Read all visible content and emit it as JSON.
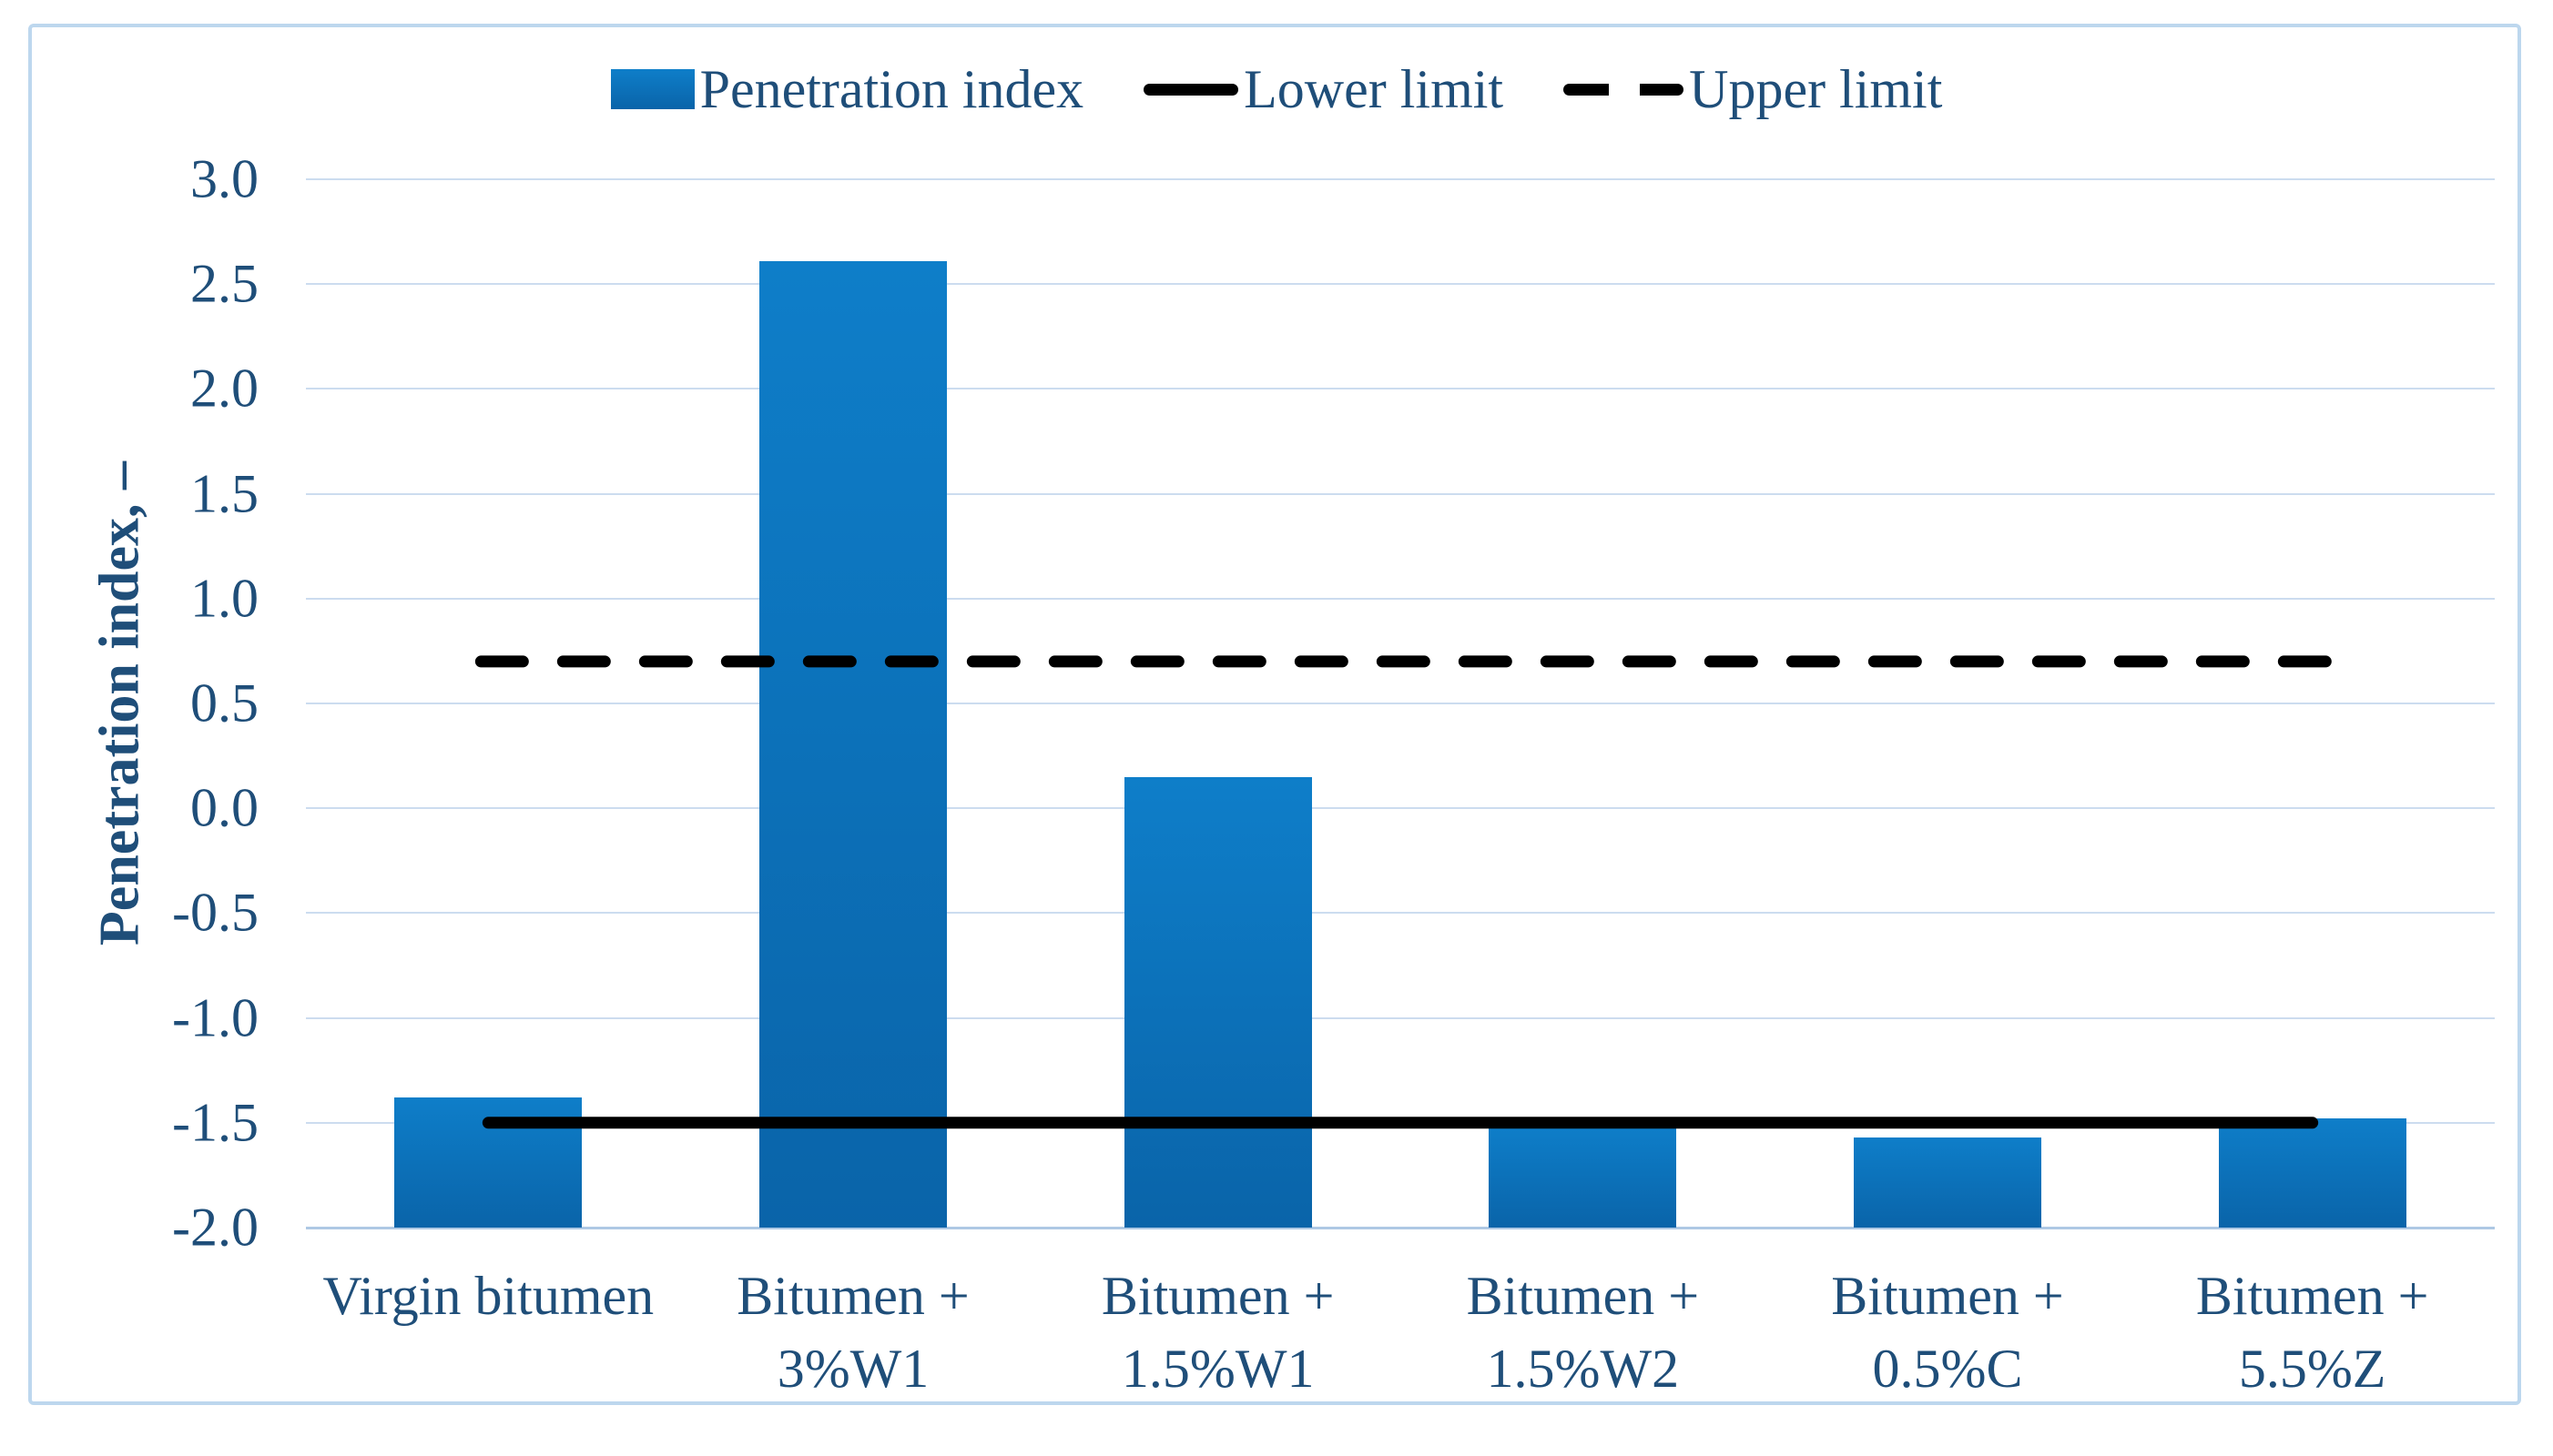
{
  "figure": {
    "description": "Bar chart of penetration index for virgin and modified bitumen samples with lower and upper limit lines"
  },
  "legend": {
    "items": [
      {
        "label": "Penetration index",
        "marker": "bar-swatch"
      },
      {
        "label": "Lower limit",
        "marker": "solid-line"
      },
      {
        "label": "Upper limit",
        "marker": "dashed-line"
      }
    ]
  },
  "chart_data": {
    "type": "bar",
    "title": "",
    "ylabel": "Penetration index, –",
    "xlabel": "",
    "categories": [
      "Virgin bitumen",
      "Bitumen +\n3%W1",
      "Bitumen +\n1.5%W1",
      "Bitumen +\n1.5%W2",
      "Bitumen +\n0.5%C",
      "Bitumen +\n5.5%Z"
    ],
    "series": [
      {
        "name": "Penetration index",
        "type": "bar",
        "values": [
          -1.38,
          2.61,
          0.15,
          -1.52,
          -1.57,
          -1.48
        ]
      },
      {
        "name": "Lower limit",
        "type": "line",
        "style": "solid",
        "value": -1.5
      },
      {
        "name": "Upper limit",
        "type": "line",
        "style": "dashed",
        "value": 0.7
      }
    ],
    "ylim": [
      -2.0,
      3.0
    ],
    "ytick_step": 0.5,
    "ytick_format_decimals": 1,
    "bar_base": -2.0,
    "grid": "horizontal",
    "legend_position": "top"
  },
  "colors": {
    "bar_top": "#0e7ec9",
    "bar_bottom": "#0a64a9",
    "limit_line": "#000000",
    "gridline": "#ccdcef",
    "axis_line": "#aec8e4",
    "text": "#1f4e79",
    "frame_border": "#bdd7ee",
    "background": "#ffffff"
  }
}
